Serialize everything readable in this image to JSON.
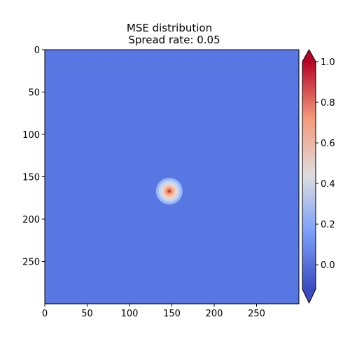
{
  "chart_data": {
    "type": "heatmap",
    "title": "MSE distribution",
    "subtitle": "Spread rate: 0.05",
    "xlabel": "",
    "ylabel": "",
    "xlim": [
      0,
      300
    ],
    "ylim": [
      300,
      0
    ],
    "x_ticks": [
      "0",
      "50",
      "100",
      "150",
      "200",
      "250"
    ],
    "y_ticks": [
      "0",
      "50",
      "100",
      "150",
      "200",
      "250"
    ],
    "colormap": "coolwarm",
    "colorbar": {
      "range": [
        -0.12,
        1.0
      ],
      "extend": "both",
      "ticks": [
        "0.0",
        "0.2",
        "0.4",
        "0.6",
        "0.8",
        "1.0"
      ]
    },
    "background_value": 0.0,
    "hotspot": {
      "x": 147,
      "y": 167,
      "peak_value": 0.85,
      "radius": 15
    },
    "grid": false
  }
}
